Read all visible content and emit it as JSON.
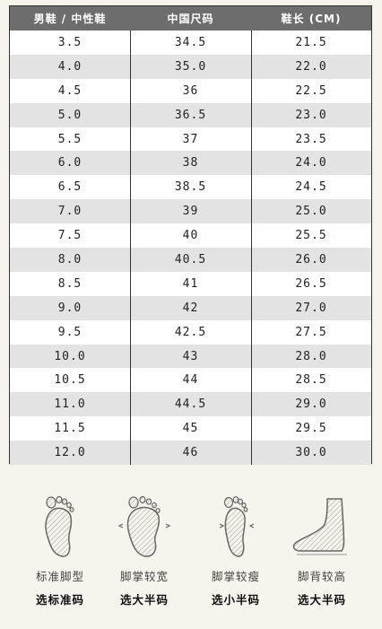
{
  "table": {
    "headers": [
      "男鞋 / 中性鞋",
      "中国尺码",
      "鞋长 (CM)"
    ],
    "rows": [
      [
        "3.5",
        "34.5",
        "21.5"
      ],
      [
        "4.0",
        "35.0",
        "22.0"
      ],
      [
        "4.5",
        "36",
        "22.5"
      ],
      [
        "5.0",
        "36.5",
        "23.0"
      ],
      [
        "5.5",
        "37",
        "23.5"
      ],
      [
        "6.0",
        "38",
        "24.0"
      ],
      [
        "6.5",
        "38.5",
        "24.5"
      ],
      [
        "7.0",
        "39",
        "25.0"
      ],
      [
        "7.5",
        "40",
        "25.5"
      ],
      [
        "8.0",
        "40.5",
        "26.0"
      ],
      [
        "8.5",
        "41",
        "26.5"
      ],
      [
        "9.0",
        "42",
        "27.0"
      ],
      [
        "9.5",
        "42.5",
        "27.5"
      ],
      [
        "10.0",
        "43",
        "28.0"
      ],
      [
        "10.5",
        "44",
        "28.5"
      ],
      [
        "11.0",
        "44.5",
        "29.0"
      ],
      [
        "11.5",
        "45",
        "29.5"
      ],
      [
        "12.0",
        "46",
        "30.0"
      ]
    ]
  },
  "feet": [
    {
      "icon": "standard-foot-icon",
      "type": "标准脚型",
      "advice": "选标准码"
    },
    {
      "icon": "wide-foot-icon",
      "type": "脚掌较宽",
      "advice": "选大半码"
    },
    {
      "icon": "narrow-foot-icon",
      "type": "脚掌较瘦",
      "advice": "选小半码"
    },
    {
      "icon": "high-instep-foot-icon",
      "type": "脚背较高",
      "advice": "选大半码"
    }
  ]
}
